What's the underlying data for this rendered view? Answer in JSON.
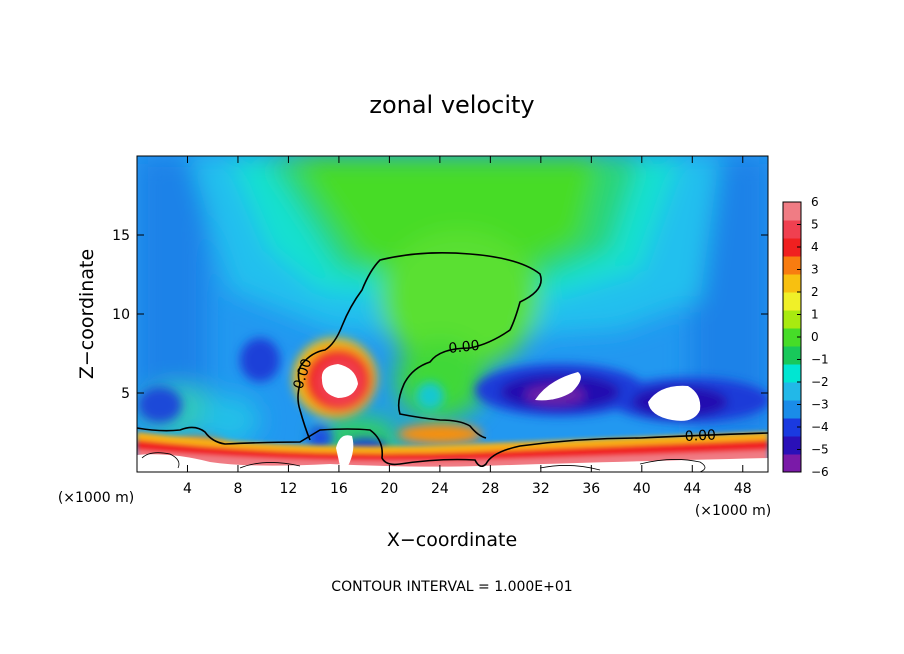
{
  "chart_data": {
    "type": "heatmap",
    "title": "zonal velocity",
    "xlabel": "X−coordinate",
    "ylabel": "Z−coordinate",
    "x_unit": "(×1000 m)",
    "y_unit": "(×1000 m)",
    "xlim": [
      0,
      50
    ],
    "ylim": [
      0,
      20
    ],
    "x_ticks": [
      4,
      8,
      12,
      16,
      20,
      24,
      28,
      32,
      36,
      40,
      44,
      48
    ],
    "y_ticks": [
      5,
      10,
      15
    ],
    "colorbar": {
      "range": [
        -6,
        6
      ],
      "ticks": [
        6,
        5,
        4,
        3,
        2,
        1,
        0,
        -1,
        -2,
        -3,
        -4,
        -5,
        -6
      ],
      "tick_labels": [
        "6",
        "5",
        "4",
        "3",
        "2",
        "1",
        "0",
        "−1",
        "−2",
        "−3",
        "−4",
        "−5",
        "−6"
      ],
      "colors": [
        "#7a1aa8",
        "#2a10b8",
        "#1a3ae0",
        "#1a8ce8",
        "#22b8e8",
        "#00e6d2",
        "#18c85a",
        "#46dc28",
        "#a8ea10",
        "#f0f028",
        "#f8c010",
        "#f87c10",
        "#f02020",
        "#f04050",
        "#f07c84"
      ]
    },
    "contour_labels": [
      "0.00",
      "0.00",
      "0.00"
    ],
    "footer": "CONTOUR INTERVAL = 1.000E+01",
    "features": [
      {
        "x": 26,
        "z": 15,
        "value": 0.5
      },
      {
        "x": 17.5,
        "z": 5.6,
        "value": 6.0
      },
      {
        "x": 33.5,
        "z": 5,
        "value": -5.8
      },
      {
        "x": 43.5,
        "z": 4.7,
        "value": -5.8
      },
      {
        "x": 6,
        "z": 1.3,
        "value": 3.5
      },
      {
        "x": 24,
        "z": 2.4,
        "value": 3.0
      },
      {
        "x": 36,
        "z": 1.4,
        "value": 4.0
      }
    ]
  }
}
